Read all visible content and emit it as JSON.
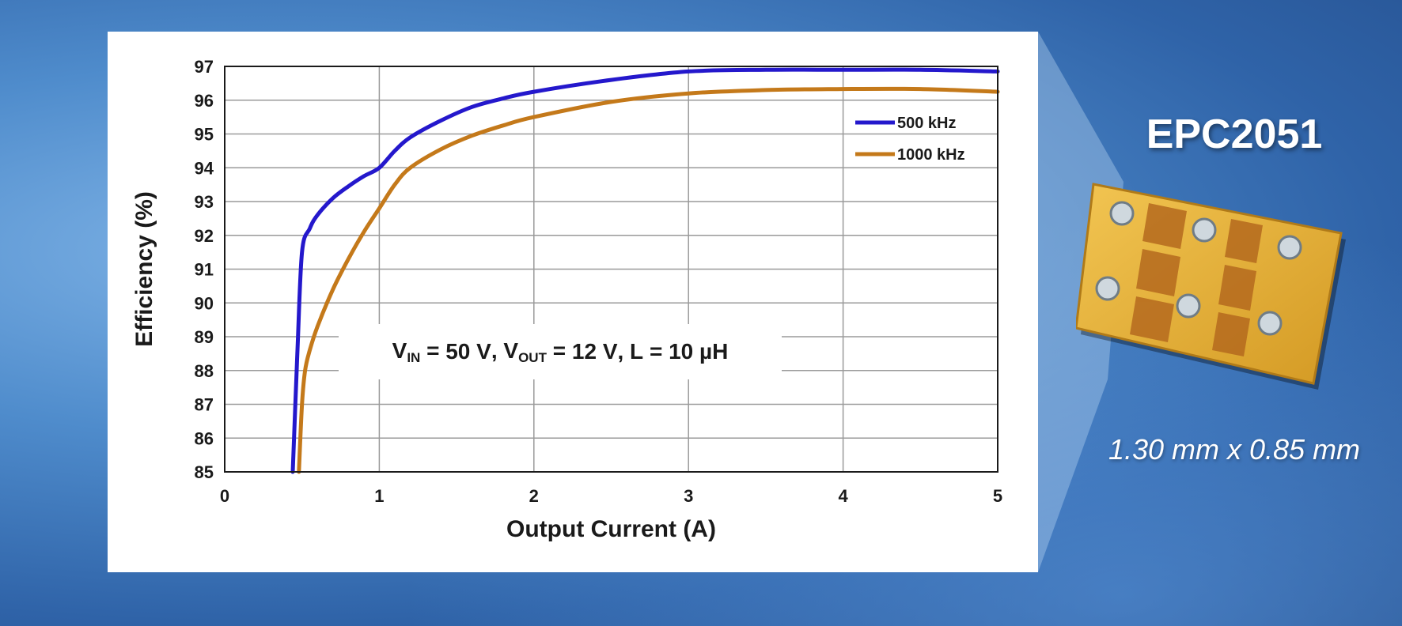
{
  "product": {
    "name": "EPC2051",
    "dimensions": "1.30 mm x 0.85 mm"
  },
  "colors": {
    "background": "#3a6fb0",
    "series_500": "#2418cc",
    "series_1000": "#c4791a"
  },
  "chart_data": {
    "type": "line",
    "xlabel": "Output Current (A)",
    "ylabel": "Efficiency (%)",
    "xlim": [
      0,
      5
    ],
    "ylim": [
      85,
      97
    ],
    "xticks": [
      "0",
      "1",
      "2",
      "3",
      "4",
      "5"
    ],
    "yticks": [
      "85",
      "86",
      "87",
      "88",
      "89",
      "90",
      "91",
      "92",
      "93",
      "94",
      "95",
      "96",
      "97"
    ],
    "grid": true,
    "legend_position": "top-right",
    "annotation": {
      "v_in": "50 V",
      "v_out": "12 V",
      "inductance": "10 µH"
    },
    "series": [
      {
        "name": "500 kHz",
        "color": "#2418cc",
        "x": [
          0.44,
          0.47,
          0.5,
          0.55,
          0.6,
          0.7,
          0.8,
          0.9,
          1.0,
          1.1,
          1.2,
          1.4,
          1.6,
          1.8,
          2.0,
          2.5,
          3.0,
          3.5,
          4.0,
          4.5,
          5.0
        ],
        "y": [
          85.0,
          88.5,
          91.5,
          92.2,
          92.6,
          93.1,
          93.45,
          93.75,
          94.0,
          94.5,
          94.9,
          95.4,
          95.8,
          96.05,
          96.25,
          96.6,
          96.85,
          96.9,
          96.9,
          96.9,
          96.85
        ]
      },
      {
        "name": "1000 kHz",
        "color": "#c4791a",
        "x": [
          0.48,
          0.5,
          0.52,
          0.55,
          0.6,
          0.7,
          0.8,
          0.9,
          1.0,
          1.1,
          1.2,
          1.4,
          1.6,
          1.8,
          2.0,
          2.5,
          3.0,
          3.5,
          4.0,
          4.5,
          5.0
        ],
        "y": [
          85.0,
          87.0,
          88.0,
          88.6,
          89.3,
          90.4,
          91.3,
          92.1,
          92.8,
          93.5,
          94.0,
          94.55,
          94.95,
          95.25,
          95.5,
          95.95,
          96.2,
          96.3,
          96.33,
          96.33,
          96.25
        ]
      }
    ]
  }
}
